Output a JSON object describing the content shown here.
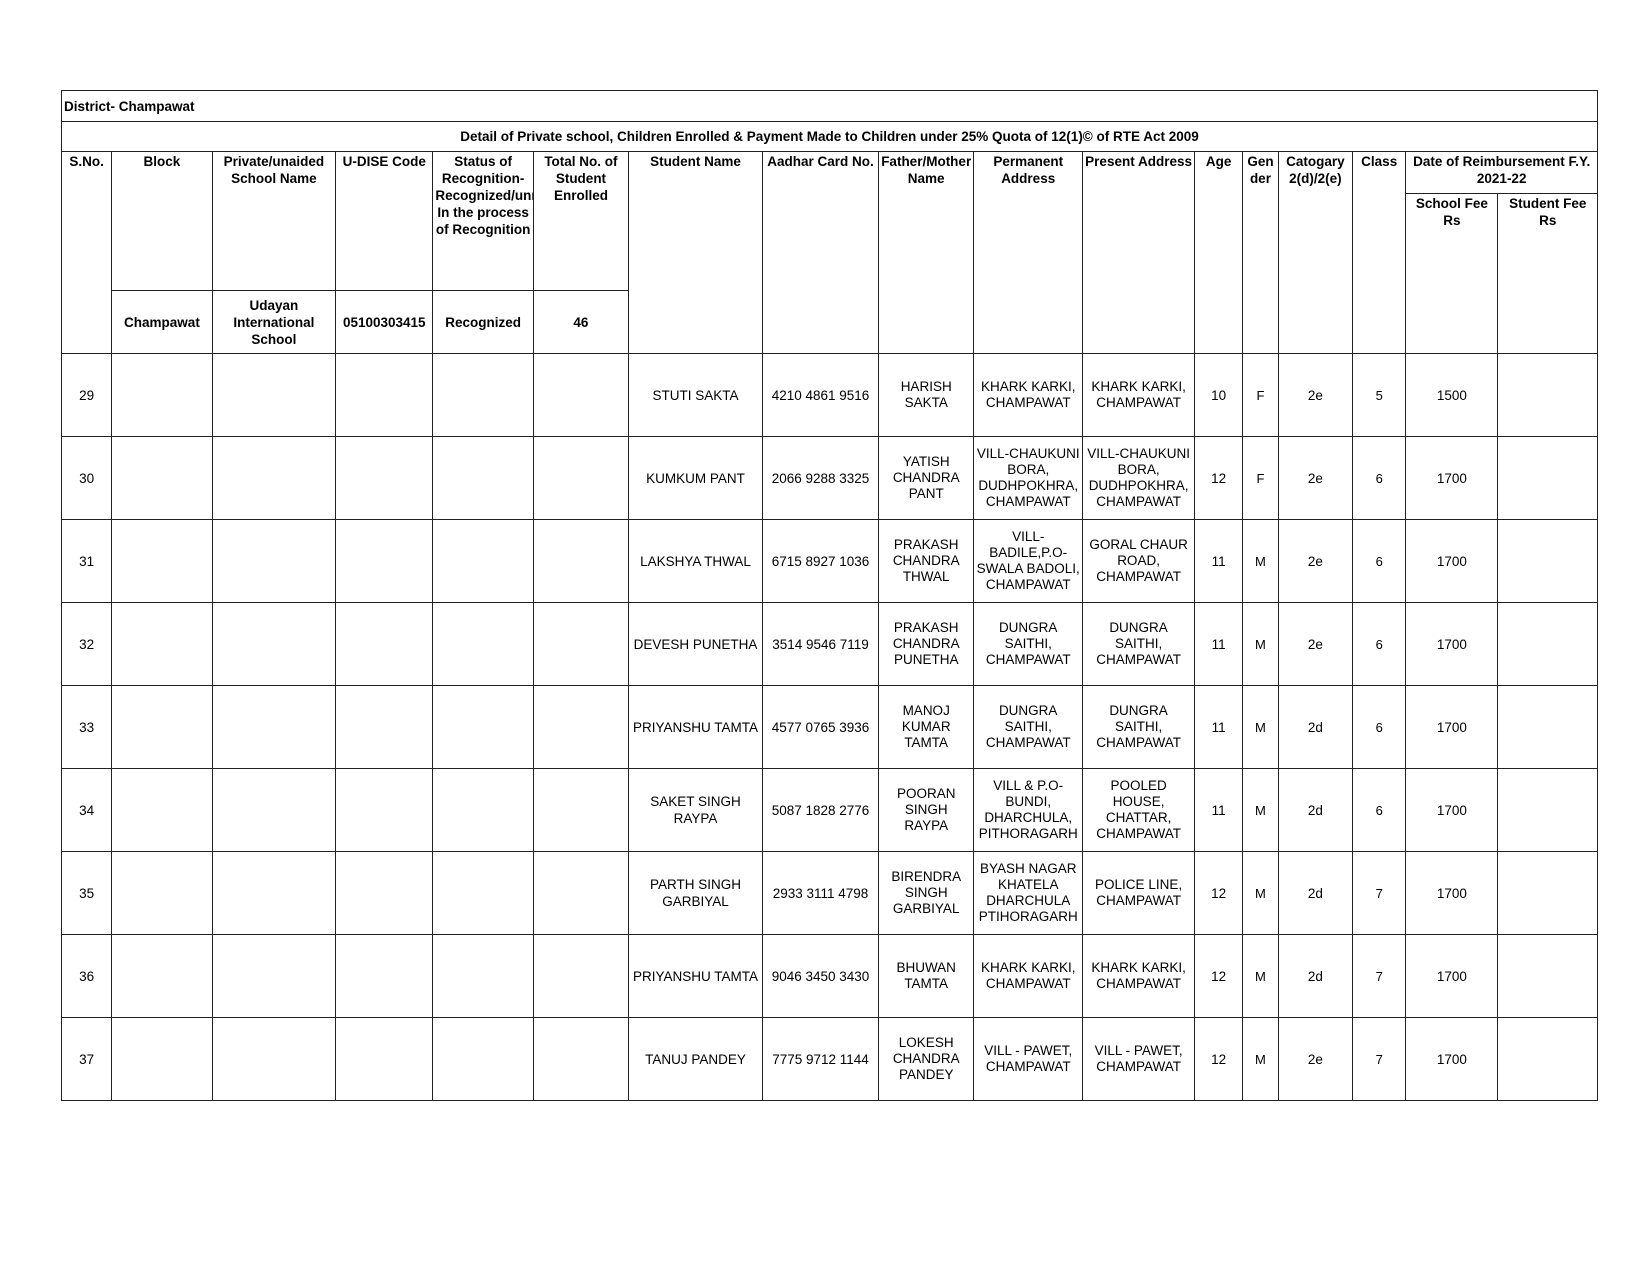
{
  "district": "District- Champawat",
  "title": "Detail of Private school, Children Enrolled & Payment Made to Children under 25% Quota of 12(1)© of RTE Act 2009",
  "headers": {
    "sno": "S.No.",
    "block": "Block",
    "school_name": "Private/unaided School Name",
    "udise": "U-DISE Code",
    "status": "Status of Recognition-Recognized/unrecognized/ In the process of Recognition",
    "total": "Total No. of Student Enrolled",
    "student_name": "Student Name",
    "aadhar": "Aadhar Card No.",
    "parent": "Father/Mother Name",
    "perm_addr": "Permanent Address",
    "present_addr": "Present Address",
    "age": "Age",
    "gender": "Gender",
    "category": "Catogary 2(d)/2(e)",
    "class": "Class",
    "reimbursement": "Date of Reimbursement F.Y. 2021-22",
    "school_fee": "School Fee Rs",
    "student_fee": "Student Fee Rs"
  },
  "school": {
    "block": "Champawat",
    "name": "Udayan International School",
    "udise": "05100303415",
    "status": "Recognized",
    "total": "46"
  },
  "rows": [
    {
      "sno": "29",
      "student": "STUTI SAKTA",
      "aadhar": "4210 4861 9516",
      "parent": "HARISH SAKTA",
      "perm": "KHARK KARKI, CHAMPAWAT",
      "present": "KHARK KARKI, CHAMPAWAT",
      "age": "10",
      "gender": "F",
      "category": "2e",
      "class": "5",
      "school_fee": "1500",
      "student_fee": ""
    },
    {
      "sno": "30",
      "student": "KUMKUM PANT",
      "aadhar": "2066 9288 3325",
      "parent": "YATISH CHANDRA PANT",
      "perm": "VILL-CHAUKUNI BORA, DUDHPOKHRA, CHAMPAWAT",
      "present": "VILL-CHAUKUNI BORA, DUDHPOKHRA, CHAMPAWAT",
      "age": "12",
      "gender": "F",
      "category": "2e",
      "class": "6",
      "school_fee": "1700",
      "student_fee": ""
    },
    {
      "sno": "31",
      "student": "LAKSHYA THWAL",
      "aadhar": "6715 8927 1036",
      "parent": "PRAKASH CHANDRA THWAL",
      "perm": "VILL-BADILE,P.O-SWALA BADOLI, CHAMPAWAT",
      "present": "GORAL CHAUR ROAD, CHAMPAWAT",
      "age": "11",
      "gender": "M",
      "category": "2e",
      "class": "6",
      "school_fee": "1700",
      "student_fee": ""
    },
    {
      "sno": "32",
      "student": "DEVESH PUNETHA",
      "aadhar": "3514 9546 7119",
      "parent": "PRAKASH CHANDRA PUNETHA",
      "perm": "DUNGRA SAITHI, CHAMPAWAT",
      "present": "DUNGRA SAITHI, CHAMPAWAT",
      "age": "11",
      "gender": "M",
      "category": "2e",
      "class": "6",
      "school_fee": "1700",
      "student_fee": ""
    },
    {
      "sno": "33",
      "student": "PRIYANSHU TAMTA",
      "aadhar": "4577 0765 3936",
      "parent": "MANOJ KUMAR TAMTA",
      "perm": "DUNGRA SAITHI, CHAMPAWAT",
      "present": "DUNGRA SAITHI, CHAMPAWAT",
      "age": "11",
      "gender": "M",
      "category": "2d",
      "class": "6",
      "school_fee": "1700",
      "student_fee": ""
    },
    {
      "sno": "34",
      "student": "SAKET SINGH RAYPA",
      "aadhar": "5087 1828 2776",
      "parent": "POORAN SINGH RAYPA",
      "perm": "VILL & P.O-BUNDI, DHARCHULA, PITHORAGARH",
      "present": "POOLED HOUSE, CHATTAR, CHAMPAWAT",
      "age": "11",
      "gender": "M",
      "category": "2d",
      "class": "6",
      "school_fee": "1700",
      "student_fee": ""
    },
    {
      "sno": "35",
      "student": "PARTH SINGH GARBIYAL",
      "aadhar": "2933 3111 4798",
      "parent": "BIRENDRA SINGH GARBIYAL",
      "perm": "BYASH NAGAR KHATELA DHARCHULA PTIHORAGARH",
      "present": "POLICE LINE, CHAMPAWAT",
      "age": "12",
      "gender": "M",
      "category": "2d",
      "class": "7",
      "school_fee": "1700",
      "student_fee": ""
    },
    {
      "sno": "36",
      "student": "PRIYANSHU TAMTA",
      "aadhar": "9046 3450 3430",
      "parent": "BHUWAN TAMTA",
      "perm": "KHARK KARKI, CHAMPAWAT",
      "present": "KHARK KARKI, CHAMPAWAT",
      "age": "12",
      "gender": "M",
      "category": "2d",
      "class": "7",
      "school_fee": "1700",
      "student_fee": ""
    },
    {
      "sno": "37",
      "student": "TANUJ PANDEY",
      "aadhar": "7775 9712 1144",
      "parent": "LOKESH CHANDRA PANDEY",
      "perm": "VILL - PAWET, CHAMPAWAT",
      "present": "VILL - PAWET, CHAMPAWAT",
      "age": "12",
      "gender": "M",
      "category": "2e",
      "class": "7",
      "school_fee": "1700",
      "student_fee": ""
    }
  ]
}
